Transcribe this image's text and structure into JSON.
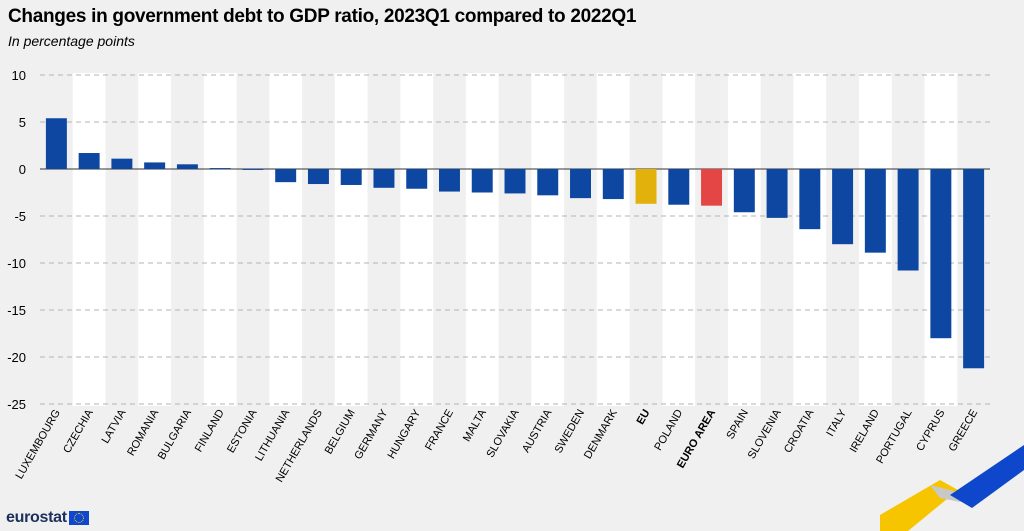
{
  "title": "Changes in government debt to GDP ratio, 2023Q1 compared to 2022Q1",
  "subtitle": "In percentage points",
  "logo": {
    "text": "eurostat",
    "icon": "eu-flag-icon"
  },
  "colors": {
    "bar": "#0e47a1",
    "eu": "#e3b10b",
    "euro_area": "#e44545",
    "grid": "#b3b3b3",
    "band": "#f0f0f0"
  },
  "chart_data": {
    "type": "bar",
    "title": "Changes in government debt to GDP ratio, 2023Q1 compared to 2022Q1",
    "subtitle": "In percentage points",
    "xlabel": "",
    "ylabel": "",
    "ylim": [
      -25,
      10
    ],
    "yticks": [
      10,
      5,
      0,
      -5,
      -10,
      -15,
      -20,
      -25
    ],
    "grid": true,
    "categories": [
      "LUXEMBOURG",
      "CZECHIA",
      "LATVIA",
      "ROMANIA",
      "BULGARIA",
      "FINLAND",
      "ESTONIA",
      "LITHUANIA",
      "NETHERLANDS",
      "BELGIUM",
      "GERMANY",
      "HUNGARY",
      "FRANCE",
      "MALTA",
      "SLOVAKIA",
      "AUSTRIA",
      "SWEDEN",
      "DENMARK",
      "EU",
      "POLAND",
      "EURO AREA",
      "SPAIN",
      "SLOVENIA",
      "CROATIA",
      "ITALY",
      "IRELAND",
      "PORTUGAL",
      "CYPRUS",
      "GREECE"
    ],
    "values": [
      5.4,
      1.7,
      1.1,
      0.7,
      0.5,
      0.1,
      -0.1,
      -1.4,
      -1.6,
      -1.7,
      -2.0,
      -2.1,
      -2.4,
      -2.5,
      -2.6,
      -2.8,
      -3.1,
      -3.2,
      -3.7,
      -3.8,
      -3.9,
      -4.6,
      -5.2,
      -6.4,
      -8.0,
      -8.9,
      -10.8,
      -18.0,
      -21.2
    ],
    "highlight": {
      "EU": "#e3b10b",
      "EURO AREA": "#e44545"
    }
  }
}
